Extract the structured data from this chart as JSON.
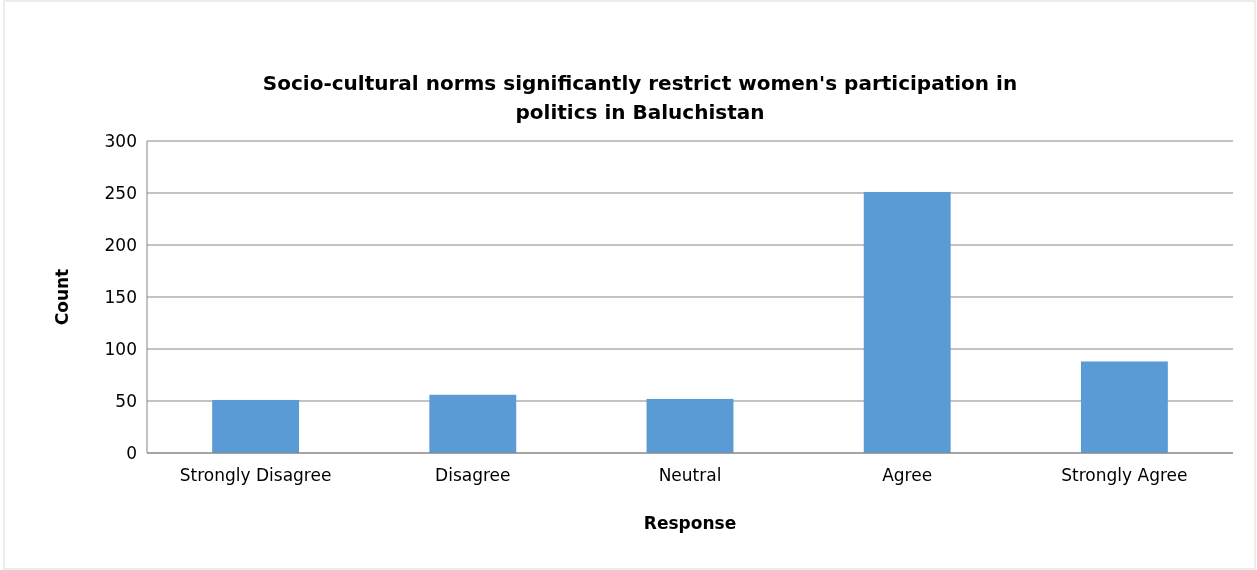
{
  "chart_data": {
    "type": "bar",
    "title": "Socio-cultural norms significantly restrict women's participation in politics in Baluchistan",
    "xlabel": "Response",
    "ylabel": "Count",
    "categories": [
      "Strongly Disagree",
      "Disagree",
      "Neutral",
      "Agree",
      "Strongly Agree"
    ],
    "values": [
      51,
      56,
      52,
      251,
      88
    ],
    "color": "#5b9bd5",
    "ylim": [
      0,
      300
    ],
    "yticks": [
      0,
      50,
      100,
      150,
      200,
      250,
      300
    ],
    "grid": "y",
    "legend": false
  }
}
